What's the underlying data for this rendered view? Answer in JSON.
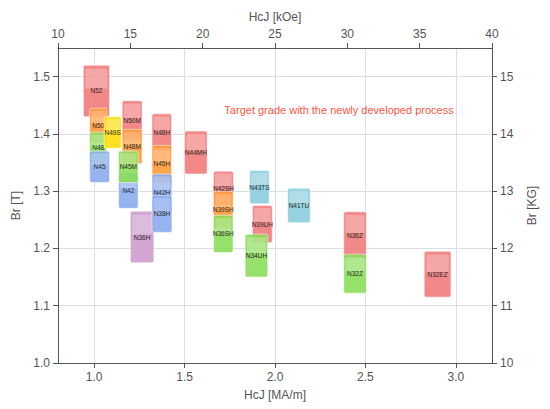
{
  "chart_data": {
    "type": "boxes",
    "xlabel": "HcJ [MA/m]",
    "x2label": "HcJ [kOe]",
    "ylabel": "Br [T]",
    "y2label": "Br [KG]",
    "xlim": [
      0.8,
      3.2
    ],
    "xticks": [
      {
        "value": 1.0,
        "label": "1.0"
      },
      1.5,
      {
        "value": 2.0,
        "label": "2.0"
      },
      2.5,
      {
        "value": 3.0,
        "label": "3.0"
      }
    ],
    "x2lim": [
      10,
      40
    ],
    "x2ticks": [
      10,
      15,
      20,
      25,
      30,
      35,
      40
    ],
    "ylim": [
      1.0,
      1.55
    ],
    "yticks": [
      {
        "value": 1.0,
        "label": "1.0"
      },
      1.1,
      1.2,
      1.3,
      1.4,
      1.5
    ],
    "y2lim": [
      10,
      15.5
    ],
    "y2ticks": [
      10,
      11,
      12,
      13,
      14,
      15
    ],
    "grid": true,
    "boxes": [
      {
        "label": "N52",
        "x": 0.94,
        "y": 1.43,
        "w": 0.145,
        "h": 0.09,
        "color": "#F07878",
        "zorder": 5
      },
      {
        "label": "N50",
        "x": 0.975,
        "y": 1.385,
        "w": 0.095,
        "h": 0.06,
        "color": "#FF9933",
        "zorder": 6
      },
      {
        "label": "N49S",
        "x": 1.055,
        "y": 1.375,
        "w": 0.095,
        "h": 0.055,
        "color": "#FFDD00",
        "zorder": 7
      },
      {
        "label": "N48",
        "x": 0.975,
        "y": 1.348,
        "w": 0.095,
        "h": 0.055,
        "color": "#88DD55",
        "zorder": 6
      },
      {
        "label": "N50M",
        "x": 1.155,
        "y": 1.39,
        "w": 0.11,
        "h": 0.068,
        "color": "#F07878",
        "zorder": 7
      },
      {
        "label": "N48M",
        "x": 1.155,
        "y": 1.348,
        "w": 0.11,
        "h": 0.06,
        "color": "#FF9933",
        "zorder": 7
      },
      {
        "label": "N45",
        "x": 0.975,
        "y": 1.315,
        "w": 0.11,
        "h": 0.055,
        "color": "#88AAEE",
        "zorder": 6
      },
      {
        "label": "N45M",
        "x": 1.135,
        "y": 1.315,
        "w": 0.108,
        "h": 0.055,
        "color": "#88DD55",
        "zorder": 7
      },
      {
        "label": "N48H",
        "x": 1.32,
        "y": 1.37,
        "w": 0.108,
        "h": 0.065,
        "color": "#F07878",
        "zorder": 7
      },
      {
        "label": "N45H",
        "x": 1.32,
        "y": 1.315,
        "w": 0.108,
        "h": 0.065,
        "color": "#FF9933",
        "zorder": 7
      },
      {
        "label": "N44MH",
        "x": 1.5,
        "y": 1.33,
        "w": 0.125,
        "h": 0.075,
        "color": "#F07878",
        "zorder": 7
      },
      {
        "label": "N42",
        "x": 1.135,
        "y": 1.27,
        "w": 0.108,
        "h": 0.062,
        "color": "#88AAEE",
        "zorder": 6
      },
      {
        "label": "N42H",
        "x": 1.32,
        "y": 1.265,
        "w": 0.11,
        "h": 0.065,
        "color": "#88AAEE",
        "zorder": 7
      },
      {
        "label": "N42SH",
        "x": 1.66,
        "y": 1.275,
        "w": 0.11,
        "h": 0.06,
        "color": "#F07878",
        "zorder": 7
      },
      {
        "label": "N43TS",
        "x": 1.86,
        "y": 1.278,
        "w": 0.108,
        "h": 0.058,
        "color": "#88CCDD",
        "zorder": 7
      },
      {
        "label": "N38H",
        "x": 1.32,
        "y": 1.228,
        "w": 0.11,
        "h": 0.065,
        "color": "#88AAEE",
        "zorder": 7
      },
      {
        "label": "N39SH",
        "x": 1.66,
        "y": 1.235,
        "w": 0.108,
        "h": 0.065,
        "color": "#FF9933",
        "zorder": 7
      },
      {
        "label": "N41TU",
        "x": 2.07,
        "y": 1.245,
        "w": 0.125,
        "h": 0.06,
        "color": "#88CCDD",
        "zorder": 7
      },
      {
        "label": "N36H",
        "x": 1.2,
        "y": 1.175,
        "w": 0.13,
        "h": 0.09,
        "color": "#CC99CC",
        "zorder": 6
      },
      {
        "label": "N36SH",
        "x": 1.66,
        "y": 1.193,
        "w": 0.108,
        "h": 0.065,
        "color": "#88DD55",
        "zorder": 7
      },
      {
        "label": "N39UH",
        "x": 1.875,
        "y": 1.21,
        "w": 0.11,
        "h": 0.065,
        "color": "#F07878",
        "zorder": 7
      },
      {
        "label": "N34UH",
        "x": 1.835,
        "y": 1.15,
        "w": 0.125,
        "h": 0.075,
        "color": "#88DD55",
        "zorder": 7
      },
      {
        "label": "N36Z",
        "x": 2.38,
        "y": 1.182,
        "w": 0.125,
        "h": 0.082,
        "color": "#F07878",
        "zorder": 7
      },
      {
        "label": "N32Z",
        "x": 2.38,
        "y": 1.122,
        "w": 0.125,
        "h": 0.068,
        "color": "#88DD55",
        "zorder": 7
      },
      {
        "label": "N32EZ",
        "x": 2.825,
        "y": 1.115,
        "w": 0.148,
        "h": 0.08,
        "color": "#F07878",
        "zorder": 7
      }
    ],
    "annotations": [
      {
        "text": "Target grade with the newly developed process",
        "x": 1.72,
        "y": 1.432,
        "color": "#FF2200"
      }
    ]
  }
}
